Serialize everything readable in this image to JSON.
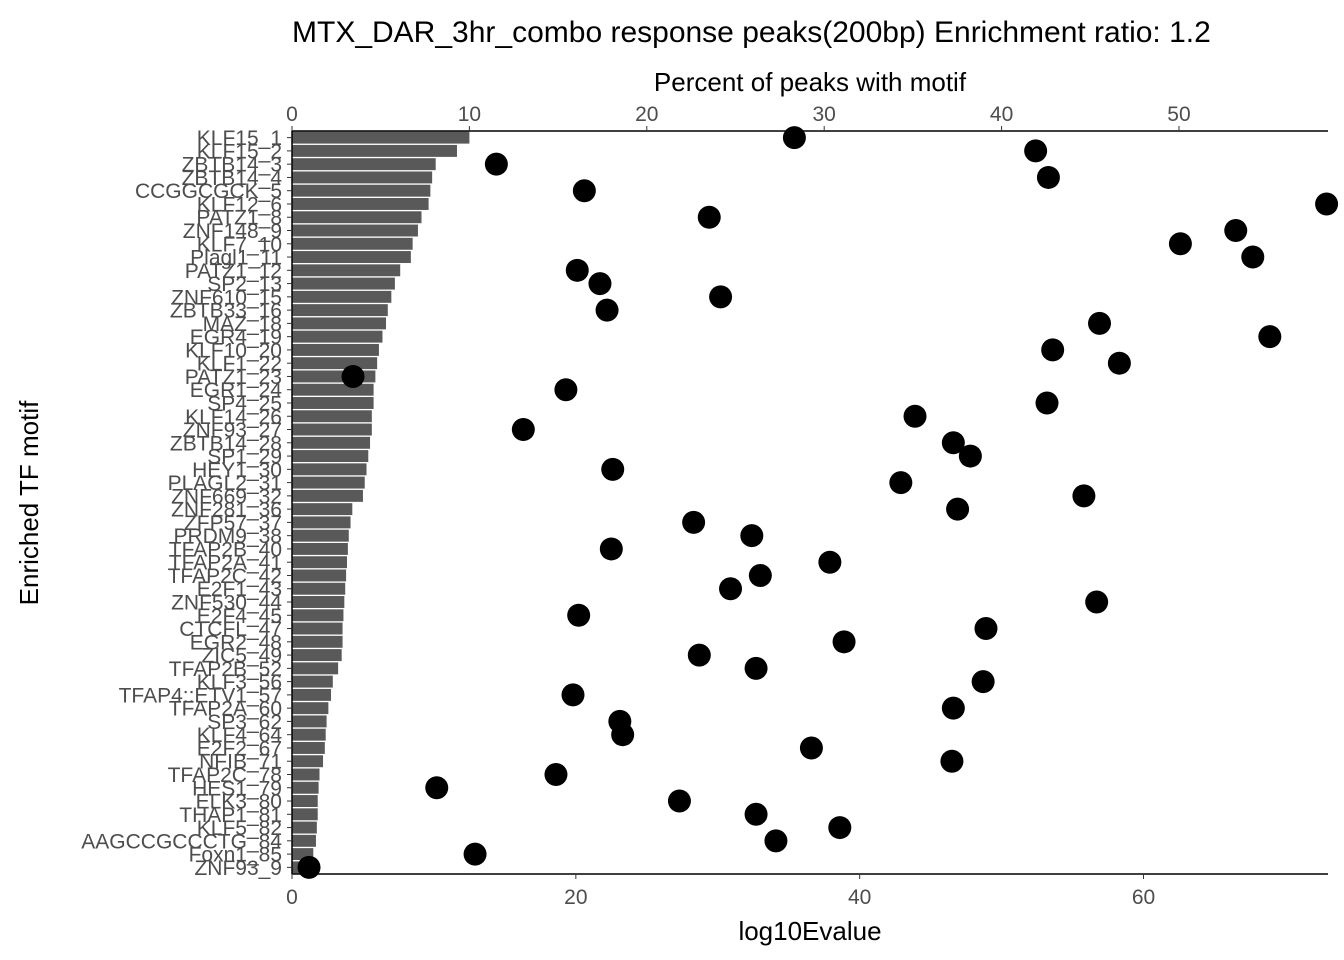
{
  "chart_data": {
    "type": "bar",
    "title": "MTX_DAR_3hr_combo response peaks(200bp) Enrichment ratio: 1.2",
    "ylabel": "Enriched TF motif",
    "xlabel": "log10Evalue",
    "x2label": "Percent of peaks with motif",
    "xlim": [
      0,
      73
    ],
    "x2lim": [
      0,
      58.4
    ],
    "xticks": [
      0,
      20,
      40,
      60
    ],
    "x2ticks": [
      0,
      10,
      20,
      30,
      40,
      50
    ],
    "colors": {
      "bar": "#595959",
      "point": "#000000",
      "axis": "#000000"
    },
    "categories": [
      "KLF15_1",
      "KLF15_2",
      "ZBTB14_3",
      "ZBTB14_4",
      "CCGGCGCK_5",
      "KLF12_6",
      "PATZ1_8",
      "ZNF148_9",
      "KLF7_10",
      "Plagl1_11",
      "PATZ1_12",
      "SP2_13",
      "ZNF610_15",
      "ZBTB33_16",
      "MAZ_18",
      "EGR4_19",
      "KLF10_20",
      "KLF1_22",
      "PATZ1_23",
      "EGR1_24",
      "SP4_25",
      "KLF14_26",
      "ZNF93_27",
      "ZBTB14_28",
      "SP1_29",
      "HEY1_30",
      "PLAGL2_31",
      "ZNF669_32",
      "ZNF281_36",
      "ZFP57_37",
      "PRDM9_38",
      "TFAP2B_40",
      "TFAP2A_41",
      "TFAP2C_42",
      "E2F1_43",
      "ZNF530_44",
      "E2F4_45",
      "CTCFL_47",
      "EGR2_48",
      "ZIC5_49",
      "TFAP2B_52",
      "KLF3_56",
      "TFAP4::ETV1_57",
      "TFAP2A_60",
      "SP3_62",
      "KLF4_64",
      "E2F2_67",
      "NFIB_71",
      "TFAP2C_78",
      "HES1_79",
      "ELK3_80",
      "THAP1_81",
      "KLF5_82",
      "AAGCCGCCCTG_84",
      "Foxn1_85",
      "ZNF93_9"
    ],
    "series": [
      {
        "name": "",
        "type": "bar",
        "axis": "top",
        "values": [
          10.0,
          9.3,
          8.1,
          7.9,
          7.8,
          7.7,
          7.3,
          7.1,
          6.8,
          6.7,
          6.1,
          5.8,
          5.6,
          5.4,
          5.3,
          5.1,
          4.9,
          4.8,
          4.7,
          4.6,
          4.6,
          4.5,
          4.5,
          4.4,
          4.3,
          4.2,
          4.1,
          4.0,
          3.4,
          3.3,
          3.2,
          3.15,
          3.1,
          3.05,
          3.0,
          2.95,
          2.9,
          2.85,
          2.85,
          2.8,
          2.6,
          2.3,
          2.2,
          2.05,
          1.95,
          1.9,
          1.85,
          1.75,
          1.55,
          1.5,
          1.45,
          1.45,
          1.4,
          1.35,
          1.2,
          1.0
        ]
      },
      {
        "name": "",
        "type": "scatter",
        "axis": "bottom",
        "values": [
          35.4,
          52.4,
          14.4,
          53.3,
          20.6,
          72.9,
          29.4,
          66.5,
          62.6,
          67.7,
          20.1,
          21.7,
          30.2,
          22.2,
          56.9,
          68.9,
          53.6,
          58.3,
          4.3,
          19.3,
          53.2,
          43.9,
          16.3,
          46.6,
          47.8,
          22.6,
          42.9,
          55.8,
          46.9,
          28.3,
          32.4,
          22.5,
          37.9,
          33.0,
          30.9,
          56.7,
          20.2,
          48.9,
          38.9,
          28.7,
          32.7,
          48.7,
          19.8,
          46.6,
          23.1,
          23.3,
          36.6,
          46.5,
          18.6,
          10.2,
          27.3,
          32.7,
          38.6,
          34.1,
          12.9,
          1.2
        ]
      }
    ]
  }
}
